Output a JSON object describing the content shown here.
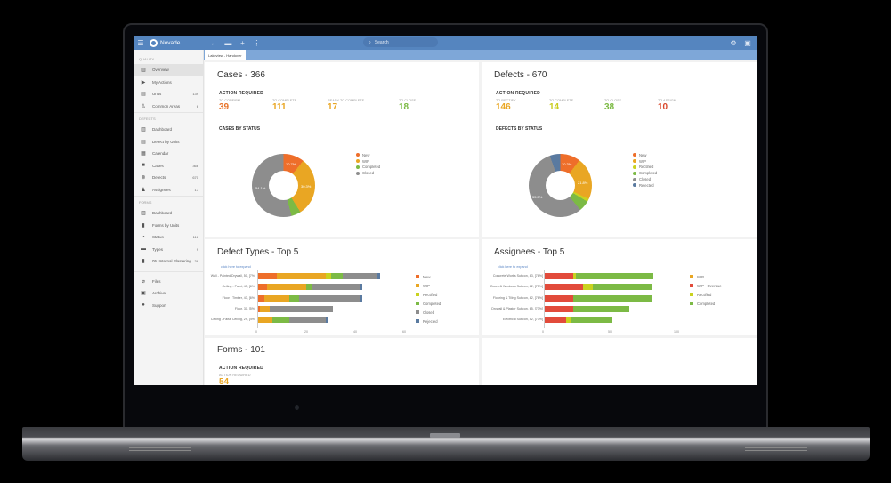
{
  "topbar": {
    "app_name": "Novade",
    "search_placeholder": "Search",
    "icons": [
      "menu-icon",
      "back-arrow-icon",
      "inbox-icon",
      "add-icon",
      "more-vertical-icon",
      "settings-icon",
      "user-icon"
    ]
  },
  "tab": {
    "label": "Lakeview - Handover"
  },
  "sidebar": {
    "sections": [
      {
        "label": "QUALITY",
        "items": [
          {
            "label": "Overview",
            "icon": "chart-icon",
            "count": "",
            "active": true
          },
          {
            "label": "My Actions",
            "icon": "play-icon",
            "count": ""
          },
          {
            "label": "Units",
            "icon": "units-icon",
            "count": "139"
          },
          {
            "label": "Common Areas",
            "icon": "person-icon",
            "count": "6"
          }
        ]
      },
      {
        "label": "DEFECTS",
        "items": [
          {
            "label": "Dashboard",
            "icon": "chart-icon",
            "count": ""
          },
          {
            "label": "Defect by Units",
            "icon": "units-icon",
            "count": ""
          },
          {
            "label": "Calendar",
            "icon": "calendar-icon",
            "count": ""
          },
          {
            "label": "Cases",
            "icon": "case-icon",
            "count": "366"
          },
          {
            "label": "Defects",
            "icon": "defect-icon",
            "count": "670"
          },
          {
            "label": "Assignees",
            "icon": "group-icon",
            "count": "17"
          }
        ]
      },
      {
        "label": "FORMS",
        "items": [
          {
            "label": "Dashboard",
            "icon": "chart-icon",
            "count": ""
          },
          {
            "label": "Forms by Units",
            "icon": "document-icon",
            "count": ""
          },
          {
            "label": "Status",
            "icon": "status-icon",
            "count": "116"
          },
          {
            "label": "Types",
            "icon": "briefcase-icon",
            "count": "9"
          },
          {
            "label": "05. Internal Plastering...",
            "icon": "document-icon",
            "count": "38"
          }
        ]
      }
    ],
    "footer_items": [
      {
        "label": "Files",
        "icon": "paperclip-icon"
      },
      {
        "label": "Archive",
        "icon": "archive-icon"
      },
      {
        "label": "Support",
        "icon": "help-icon"
      }
    ]
  },
  "cases": {
    "title": "Cases - 366",
    "action_required": "ACTION REQUIRED",
    "kpis": [
      {
        "label": "TO CONFIRM",
        "value": "39",
        "color": "#e8742a"
      },
      {
        "label": "TO COMPLETE",
        "value": "111",
        "color": "#e9a623"
      },
      {
        "label": "READY TO COMPLETE",
        "value": "17",
        "color": "#e9a623"
      },
      {
        "label": "TO CLOSE",
        "value": "18",
        "color": "#7cba45"
      }
    ],
    "by_status_title": "CASES BY STATUS",
    "legend": [
      "New",
      "WIP",
      "Completed",
      "Closed"
    ]
  },
  "defects": {
    "title": "Defects - 670",
    "action_required": "ACTION REQUIRED",
    "kpis": [
      {
        "label": "TO RECTIFY",
        "value": "146",
        "color": "#e9a623"
      },
      {
        "label": "TO COMPLETE",
        "value": "14",
        "color": "#c9cc1e"
      },
      {
        "label": "TO CLOSE",
        "value": "38",
        "color": "#7cba45"
      },
      {
        "label": "TO ASSIGN",
        "value": "10",
        "color": "#d9472b"
      }
    ],
    "by_status_title": "DEFECTS BY STATUS",
    "legend": [
      "New",
      "WIP",
      "Rectified",
      "Completed",
      "Closed",
      "Rejected"
    ]
  },
  "defect_types": {
    "title": "Defect Types - Top 5",
    "expand_link": "click here to expand",
    "legend": [
      "New",
      "WIP",
      "Rectified",
      "Completed",
      "Closed",
      "Rejected"
    ],
    "ticks": [
      "0",
      "20",
      "40",
      "60"
    ]
  },
  "assignees": {
    "title": "Assignees - Top 5",
    "expand_link": "click here to expand",
    "legend": [
      "WIP",
      "WIP - Overdue",
      "Rectified",
      "Completed"
    ],
    "ticks": [
      "0",
      "50",
      "100"
    ]
  },
  "forms": {
    "title": "Forms - 101",
    "action_required": "ACTION REQUIRED",
    "kpi_label": "ACTION REQUIRED",
    "kpi_value": "54",
    "kpi_color": "#e9a623"
  },
  "colors": {
    "new": "#ee6e2a",
    "wip": "#e9a623",
    "rectified": "#c9d21f",
    "completed": "#7cba45",
    "closed": "#8d8d8d",
    "rejected": "#5a7aa0",
    "overdue": "#e24b3b",
    "topbar": "#5585bf"
  },
  "chart_data": [
    {
      "type": "pie",
      "title": "CASES BY STATUS",
      "categories": [
        "New",
        "WIP",
        "Completed",
        "Closed"
      ],
      "values": [
        10.7,
        30.3,
        4.9,
        54.1
      ],
      "labels_shown": [
        "10.7%",
        "30.3%",
        "",
        "54.1%"
      ]
    },
    {
      "type": "pie",
      "title": "DEFECTS BY STATUS",
      "categories": [
        "New",
        "WIP",
        "Rectified",
        "Completed",
        "Closed",
        "Rejected"
      ],
      "values": [
        10.3,
        21.8,
        1.5,
        5.5,
        55.5,
        4.4
      ],
      "labels_shown": [
        "10.3%",
        "21.8%",
        "",
        "",
        "55.5%",
        ""
      ]
    },
    {
      "type": "bar",
      "orientation": "horizontal",
      "stacked": true,
      "title": "Defect Types - Top 5",
      "categories": [
        "Wall - Painted Drywall, 50, [7%]",
        "Ceiling - Paint, 43, [6%]",
        "Floor - Timber, 43, [6%]",
        "Floor, 31, [5%]",
        "Ceiling - False Ceiling, 29, [4%]"
      ],
      "series": [
        {
          "name": "New",
          "values": [
            8,
            4,
            3,
            1,
            0
          ]
        },
        {
          "name": "WIP",
          "values": [
            20,
            16,
            10,
            4,
            6
          ]
        },
        {
          "name": "Rectified",
          "values": [
            2,
            0,
            0,
            0,
            0
          ]
        },
        {
          "name": "Completed",
          "values": [
            5,
            2,
            4,
            0,
            7
          ]
        },
        {
          "name": "Closed",
          "values": [
            14,
            20,
            25,
            26,
            15
          ]
        },
        {
          "name": "Rejected",
          "values": [
            1,
            1,
            1,
            0,
            1
          ]
        }
      ],
      "xlim": [
        0,
        60
      ],
      "xticks": [
        0,
        20,
        40,
        60
      ]
    },
    {
      "type": "bar",
      "orientation": "horizontal",
      "stacked": true,
      "title": "Assignees - Top 5",
      "categories": [
        "Concrete Works Subcon, 83, [78%]",
        "Doors & Windows Subcon, 82, [75%]",
        "Flooring & Tiling Subcon, 82, [76%]",
        "Drywall & Plaster Subcon, 65, [73%]",
        "Electrical Subcon, 52, [73%]"
      ],
      "series": [
        {
          "name": "WIP",
          "values": [
            0,
            0,
            0,
            0,
            1
          ]
        },
        {
          "name": "WIP - Overdue",
          "values": [
            22,
            30,
            22,
            22,
            16
          ]
        },
        {
          "name": "Rectified",
          "values": [
            2,
            7,
            0,
            0,
            3
          ]
        },
        {
          "name": "Completed",
          "values": [
            59,
            45,
            60,
            43,
            32
          ]
        }
      ],
      "xlim": [
        0,
        100
      ],
      "xticks": [
        0,
        50,
        100
      ]
    }
  ]
}
